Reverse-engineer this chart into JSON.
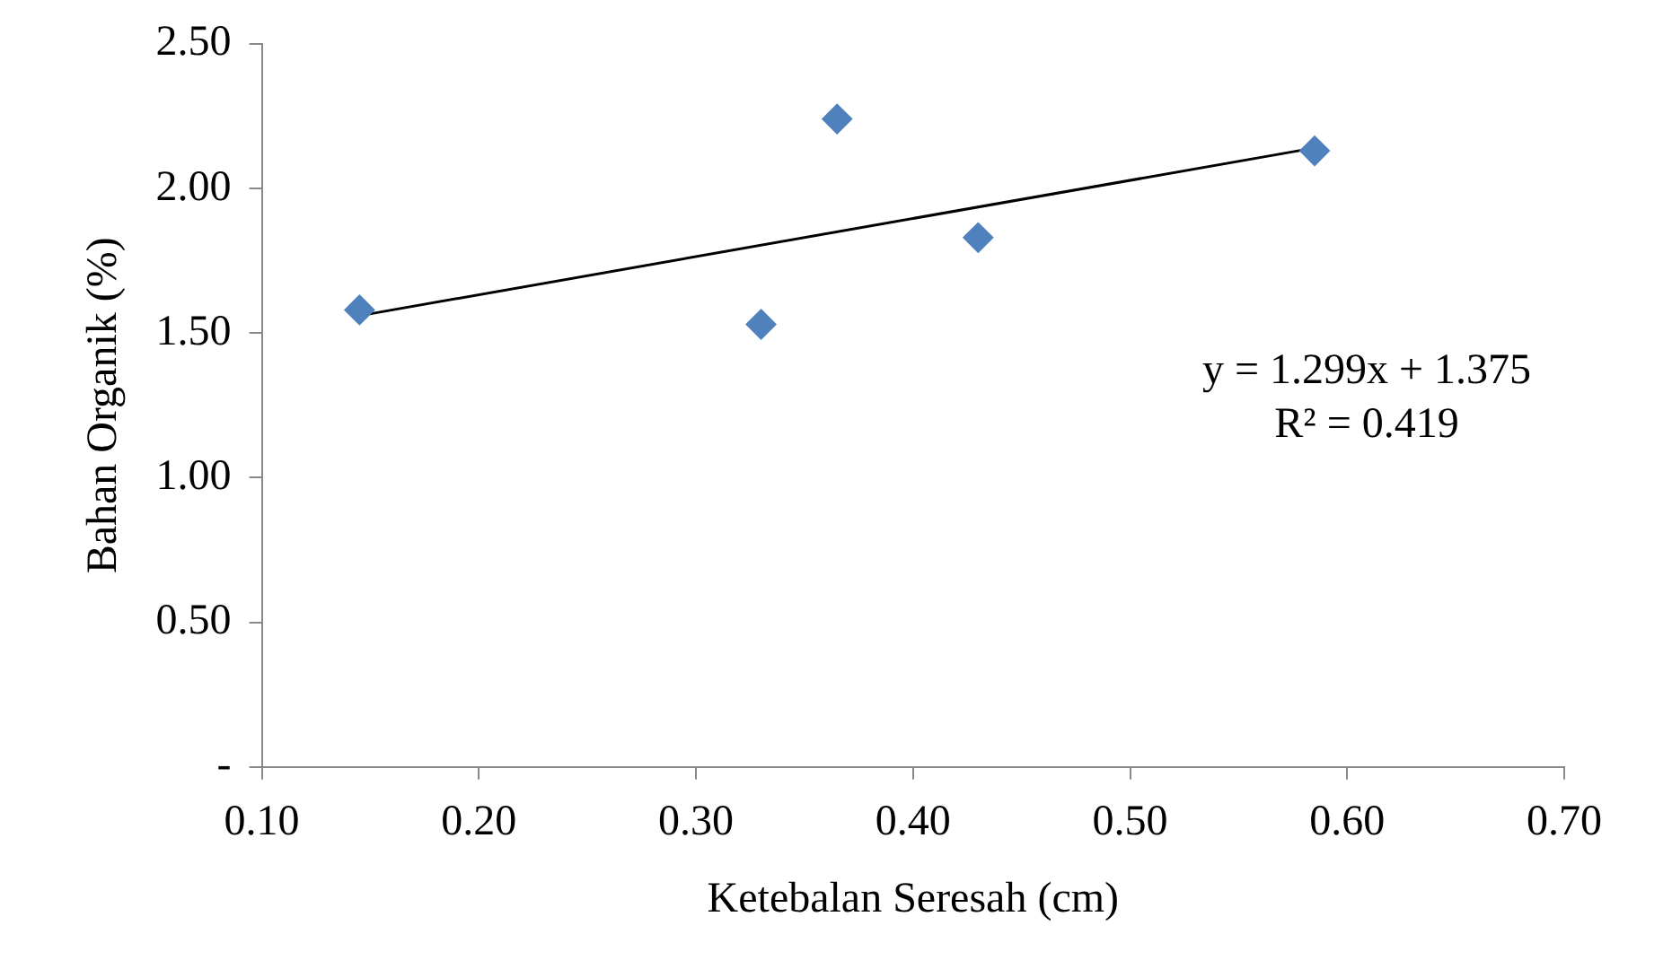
{
  "chart_data": {
    "type": "scatter",
    "xlabel": "Ketebalan Seresah (cm)",
    "ylabel": "Bahan Organik (%)",
    "xlim": [
      0.1,
      0.7
    ],
    "xticks": [
      {
        "value": 0.1,
        "label": "0.10"
      },
      {
        "value": 0.2,
        "label": "0.20"
      },
      {
        "value": 0.3,
        "label": "0.30"
      },
      {
        "value": 0.4,
        "label": "0.40"
      },
      {
        "value": 0.5,
        "label": "0.50"
      },
      {
        "value": 0.6,
        "label": "0.60"
      },
      {
        "value": 0.7,
        "label": "0.70"
      }
    ],
    "ylim": [
      0,
      2.5
    ],
    "yticks": [
      {
        "value": 0,
        "label": "-"
      },
      {
        "value": 0.5,
        "label": "0.50"
      },
      {
        "value": 1,
        "label": "1.00"
      },
      {
        "value": 1.5,
        "label": "1.50"
      },
      {
        "value": 2,
        "label": "2.00"
      },
      {
        "value": 2.5,
        "label": "2.50"
      }
    ],
    "grid": false,
    "legend": false,
    "series": [
      {
        "marker": "diamond",
        "color": "#4f81bd",
        "x": [
          0.145,
          0.33,
          0.365,
          0.43,
          0.585
        ],
        "values": [
          1.58,
          1.53,
          2.24,
          1.83,
          2.13
        ]
      },
      {
        "type": "line",
        "marker": "none",
        "color": "#000000",
        "x": [
          0.145,
          0.585
        ],
        "values": [
          1.56,
          2.14
        ]
      }
    ],
    "annotations": [
      "y = 1.299x + 1.375",
      "R² = 0.419"
    ]
  }
}
